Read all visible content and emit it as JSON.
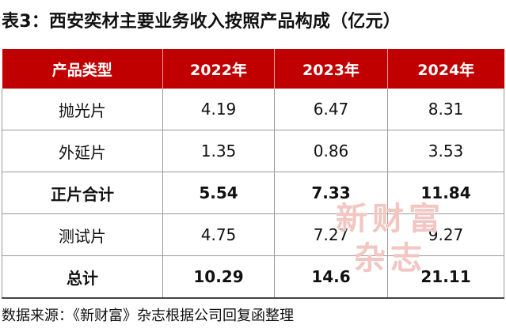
{
  "title": "表3：西安奕材主要业务收入按照产品构成（亿元）",
  "table": {
    "headers": [
      "产品类型",
      "2022年",
      "2023年",
      "2024年"
    ],
    "rows": [
      {
        "label": "抛光片",
        "values": [
          "4.19",
          "6.47",
          "8.31"
        ]
      },
      {
        "label": "外延片",
        "values": [
          "1.35",
          "0.86",
          "3.53"
        ]
      },
      {
        "label": "正片合计",
        "values": [
          "5.54",
          "7.33",
          "11.84"
        ]
      },
      {
        "label": "测试片",
        "values": [
          "4.75",
          "7.27",
          "9.27"
        ]
      },
      {
        "label": "总计",
        "values": [
          "10.29",
          "14.6",
          "21.11"
        ]
      }
    ]
  },
  "watermark": {
    "line1": "新财富",
    "line2": "杂志"
  },
  "source": "数据来源：《新财富》杂志根据公司回复函整理",
  "colors": {
    "header_bg": "#c00000",
    "header_text": "#ffffff",
    "watermark": "#f2c6c2"
  }
}
